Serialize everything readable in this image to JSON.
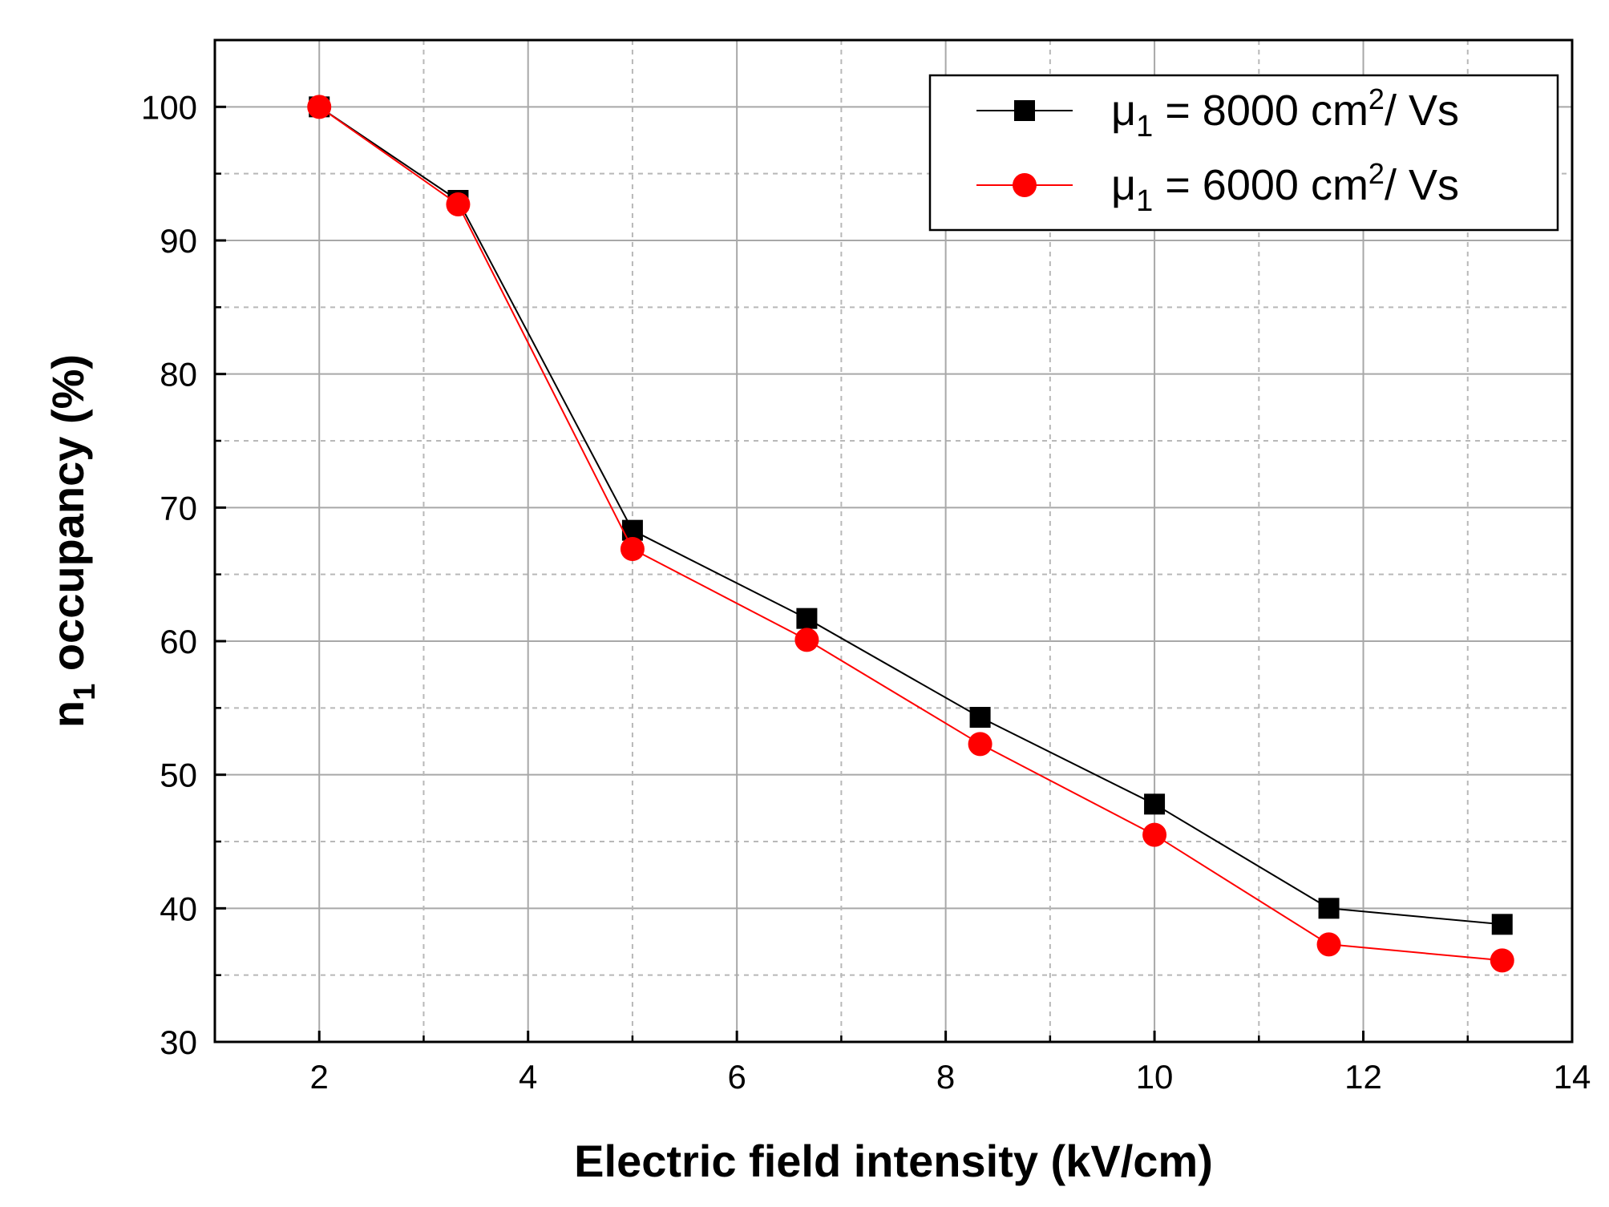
{
  "chart_data": {
    "type": "line",
    "xlabel": "Electric field intensity (kV/cm)",
    "ylabel": {
      "base": "n",
      "subscript": "1",
      "rest": " occupancy (%)"
    },
    "xlim": [
      1,
      14
    ],
    "ylim": [
      30,
      105
    ],
    "x_ticks": [
      "2",
      "4",
      "6",
      "8",
      "10",
      "12",
      "14"
    ],
    "y_ticks": [
      "30",
      "40",
      "50",
      "60",
      "70",
      "80",
      "90",
      "100"
    ],
    "grid": true,
    "legend_position": "top-right",
    "x": [
      2.0,
      3.33,
      5.0,
      6.67,
      8.33,
      10.0,
      11.67,
      13.33
    ],
    "series": [
      {
        "name": "μ1 = 8000 cm2/ Vs",
        "legend": {
          "mu": "μ",
          "sub": "1",
          "eq": " = 8000 cm",
          "sup": "2",
          "unit": "/ Vs"
        },
        "marker": "square",
        "color": "#000000",
        "values": [
          100.0,
          93.0,
          68.3,
          61.7,
          54.3,
          47.8,
          40.0,
          38.8
        ]
      },
      {
        "name": "μ1 = 6000 cm2/ Vs",
        "legend": {
          "mu": "μ",
          "sub": "1",
          "eq": " = 6000 cm",
          "sup": "2",
          "unit": "/ Vs"
        },
        "marker": "circle",
        "color": "#ff0000",
        "values": [
          100.0,
          92.7,
          66.9,
          60.1,
          52.3,
          45.5,
          37.3,
          36.1
        ]
      }
    ]
  }
}
